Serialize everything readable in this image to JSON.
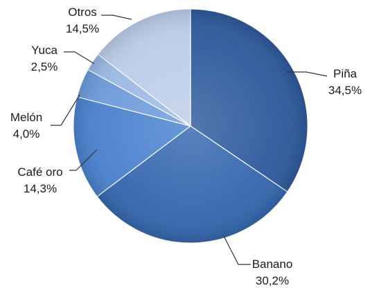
{
  "chart_data": {
    "type": "pie",
    "slices": [
      {
        "label": "Piña",
        "value": 34.5,
        "value_label": "34,5%",
        "color": "#2E5A9C"
      },
      {
        "label": "Banano",
        "value": 30.2,
        "value_label": "30,2%",
        "color": "#3567AF"
      },
      {
        "label": "Café oro",
        "value": 14.3,
        "value_label": "14,3%",
        "color": "#4A82CF"
      },
      {
        "label": "Melón",
        "value": 4.0,
        "value_label": "4,0%",
        "color": "#6E9BDB"
      },
      {
        "label": "Yuca",
        "value": 2.5,
        "value_label": "2,5%",
        "color": "#9BB9E4"
      },
      {
        "label": "Otros",
        "value": 14.5,
        "value_label": "14,5%",
        "color": "#BCCDE9"
      }
    ]
  }
}
